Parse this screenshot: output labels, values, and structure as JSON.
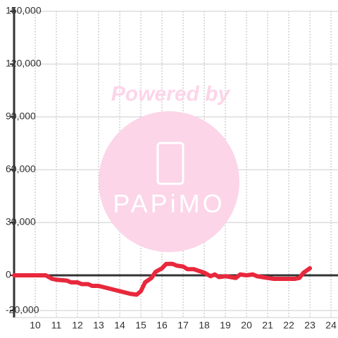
{
  "chart_data": {
    "type": "line",
    "x": [
      9,
      10.5,
      10.8,
      11,
      11.5,
      11.7,
      12,
      12.2,
      12.5,
      12.7,
      13,
      13.5,
      14,
      14.5,
      14.8,
      15,
      15.2,
      15.5,
      15.7,
      16,
      16.2,
      16.5,
      16.7,
      17,
      17.2,
      17.5,
      18,
      18.3,
      18.5,
      18.7,
      19,
      19.5,
      19.7,
      20,
      20.3,
      20.5,
      21,
      21.3,
      22,
      22.3,
      22.5,
      22.7,
      23
    ],
    "values": [
      0,
      0,
      -2000,
      -2500,
      -3000,
      -4000,
      -4000,
      -5000,
      -5000,
      -6000,
      -6000,
      -7500,
      -9000,
      -10500,
      -11000,
      -9000,
      -4000,
      -1500,
      2000,
      4000,
      6500,
      6500,
      5500,
      5000,
      3500,
      3500,
      1500,
      -500,
      500,
      -1000,
      -500,
      -1500,
      500,
      0,
      500,
      -500,
      -1500,
      -2000,
      -2000,
      -2000,
      -1500,
      1500,
      4000
    ],
    "color": "#e8283c",
    "xlim": [
      9,
      24.33
    ],
    "xticks": [
      10,
      11,
      12,
      13,
      14,
      15,
      16,
      17,
      18,
      19,
      20,
      21,
      22,
      23,
      24
    ],
    "ylim": [
      -24000,
      150000
    ],
    "yticks": [
      {
        "value": -20000,
        "label": "-20,000"
      },
      0,
      {
        "value": 30000,
        "label": "30,000"
      },
      {
        "value": 60000,
        "label": "60,000"
      },
      {
        "value": 90000,
        "label": "90,000"
      },
      {
        "value": 120000,
        "label": "120,000"
      },
      {
        "value": 150000,
        "label": "150,000"
      }
    ],
    "grid": true
  },
  "watermark": {
    "text": "Powered by",
    "logo": "PAPiMO"
  }
}
